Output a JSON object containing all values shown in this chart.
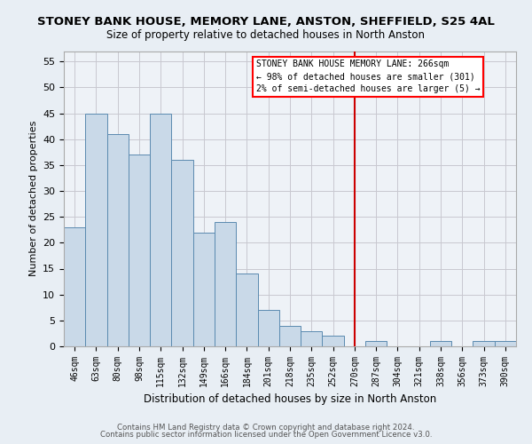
{
  "title": "STONEY BANK HOUSE, MEMORY LANE, ANSTON, SHEFFIELD, S25 4AL",
  "subtitle": "Size of property relative to detached houses in North Anston",
  "xlabel": "Distribution of detached houses by size in North Anston",
  "ylabel": "Number of detached properties",
  "bar_color": "#c9d9e8",
  "bar_edge_color": "#5a8ab0",
  "categories": [
    "46sqm",
    "63sqm",
    "80sqm",
    "98sqm",
    "115sqm",
    "132sqm",
    "149sqm",
    "166sqm",
    "184sqm",
    "201sqm",
    "218sqm",
    "235sqm",
    "252sqm",
    "270sqm",
    "287sqm",
    "304sqm",
    "321sqm",
    "338sqm",
    "356sqm",
    "373sqm",
    "390sqm"
  ],
  "values": [
    23,
    45,
    41,
    37,
    45,
    36,
    22,
    24,
    14,
    7,
    4,
    3,
    2,
    0,
    1,
    0,
    0,
    1,
    0,
    1,
    1
  ],
  "ylim": [
    0,
    57
  ],
  "yticks": [
    0,
    5,
    10,
    15,
    20,
    25,
    30,
    35,
    40,
    45,
    50,
    55
  ],
  "vline_x": 13,
  "vline_color": "#cc0000",
  "annotation_title": "STONEY BANK HOUSE MEMORY LANE: 266sqm",
  "annotation_line1": "← 98% of detached houses are smaller (301)",
  "annotation_line2": "2% of semi-detached houses are larger (5) →",
  "footer1": "Contains HM Land Registry data © Crown copyright and database right 2024.",
  "footer2": "Contains public sector information licensed under the Open Government Licence v3.0.",
  "bg_color": "#e8eef4",
  "plot_bg_color": "#eef2f7",
  "grid_color": "#c8c8d0"
}
